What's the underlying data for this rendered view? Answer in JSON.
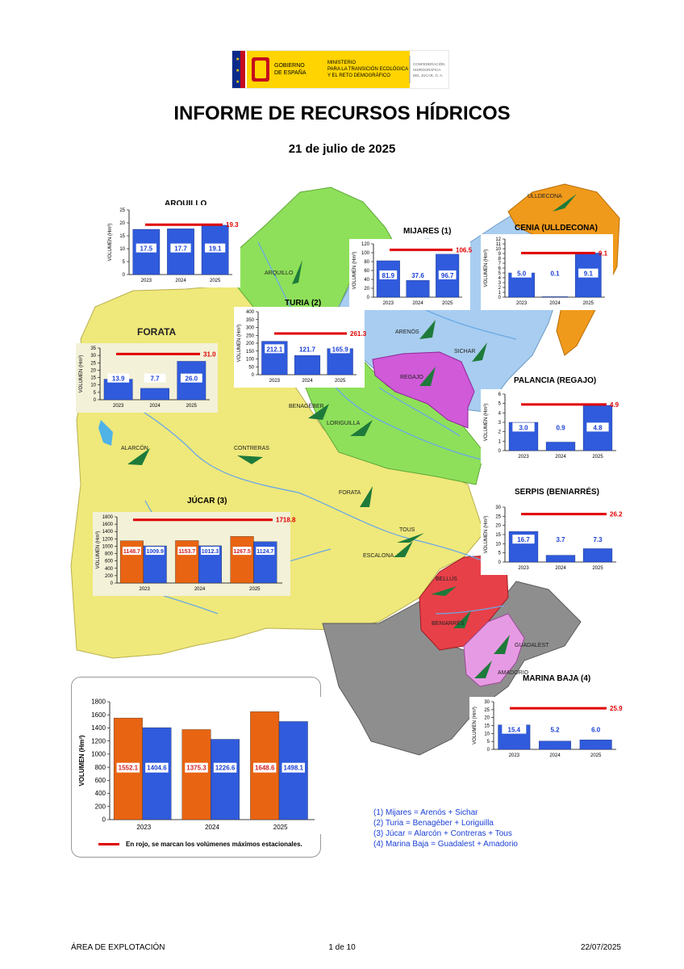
{
  "header": {
    "logo": {
      "gov_line1": "GOBIERNO",
      "gov_line2": "DE ESPAÑA",
      "ministry_line1": "MINISTERIO",
      "ministry_line2": "PARA LA TRANSICIÓN ECOLÓGICA",
      "ministry_line3": "Y EL RETO DEMOGRÁFICO",
      "chj_line1": "CONFEDERACIÓN",
      "chj_line2": "HIDROGRÁFICA",
      "chj_line3": "DEL JÚCAR, O. A."
    },
    "title": "INFORME DE RECURSOS HÍDRICOS",
    "date": "21 de julio de 2025"
  },
  "map": {
    "places": {
      "ulldecona": "ULLDECONA",
      "arquillo": "ARQUILLO",
      "arenos": "ARENÓS",
      "sichar": "SICHAR",
      "regajo": "REGAJO",
      "benageber": "BENAGÉBER",
      "loriguilla": "LORIGUILLA",
      "alarcon": "ALARCÓN",
      "contreras": "CONTRERAS",
      "forata": "FORATA",
      "tous": "TOUS",
      "escalona": "ESCALONA",
      "bellus": "BELLÚS",
      "beniarres": "BENIARRÉS",
      "guadalest": "GUADALEST",
      "amadorio": "AMADORIO"
    },
    "zone_label_forata": "FORATA",
    "colors": {
      "jucar": "#efe87a",
      "turia": "#8ee05a",
      "mijares": "#a8cdf0",
      "cenia": "#f09a1c",
      "regajo": "#d05ad8",
      "serpis": "#e84048",
      "marina": "#e79ae4",
      "segura": "#8e8e8e",
      "river": "#6aa9e6",
      "marker": "#1e7a3a"
    }
  },
  "chart_data": [
    {
      "id": "arquillo",
      "type": "bar",
      "title": "ARQUILLO",
      "ylabel": "VOLUMEN (Hm³)",
      "categories": [
        "2023",
        "2024",
        "2025"
      ],
      "values": [
        17.5,
        17.7,
        19.1
      ],
      "max_line": 19.3,
      "ylim": [
        0,
        25
      ],
      "ytick_step": 5
    },
    {
      "id": "mijares",
      "type": "bar",
      "title": "MIJARES (1)",
      "ylabel": "VOLUMEN (Hm³)",
      "categories": [
        "2023",
        "2024",
        "2025"
      ],
      "values": [
        81.9,
        37.6,
        96.7
      ],
      "max_line": 106.5,
      "ylim": [
        0,
        120
      ],
      "ytick_step": 20
    },
    {
      "id": "cenia",
      "type": "bar",
      "title": "CENIA (ULLDECONA)",
      "ylabel": "VOLUMEN (Hm³)",
      "categories": [
        "2023",
        "2024",
        "2025"
      ],
      "values": [
        5.0,
        0.1,
        9.1
      ],
      "max_line": 9.1,
      "ylim": [
        0,
        12
      ],
      "ytick_step": 1
    },
    {
      "id": "turia",
      "type": "bar",
      "title": "TURIA (2)",
      "ylabel": "VOLUMEN (Hm³)",
      "categories": [
        "2023",
        "2024",
        "2025"
      ],
      "values": [
        212.1,
        121.7,
        165.9
      ],
      "max_line": 261.3,
      "ylim": [
        0,
        400
      ],
      "ytick_step": 50
    },
    {
      "id": "forata",
      "type": "bar",
      "title": "",
      "ylabel": "VOLUMEN (Hm³)",
      "categories": [
        "2023",
        "2024",
        "2025"
      ],
      "values": [
        13.9,
        7.7,
        26.0
      ],
      "max_line": 31.0,
      "ylim": [
        0,
        35
      ],
      "ytick_step": 5
    },
    {
      "id": "palancia",
      "type": "bar",
      "title": "PALANCIA (REGAJO)",
      "ylabel": "VOLUMEN (Hm³)",
      "categories": [
        "2023",
        "2024",
        "2025"
      ],
      "values": [
        3.0,
        0.9,
        4.8
      ],
      "max_line": 4.9,
      "ylim": [
        0,
        6
      ],
      "ytick_step": 1
    },
    {
      "id": "serpis",
      "type": "bar",
      "title": "SERPIS (BENIARRÉS)",
      "ylabel": "VOLUMEN (Hm³)",
      "categories": [
        "2023",
        "2024",
        "2025"
      ],
      "values": [
        16.7,
        3.7,
        7.3
      ],
      "max_line": 26.2,
      "ylim": [
        0,
        30
      ],
      "ytick_step": 5
    },
    {
      "id": "marina",
      "type": "bar",
      "title": "MARINA BAJA (4)",
      "ylabel": "VOLUMEN (Hm³)",
      "categories": [
        "2023",
        "2024",
        "2025"
      ],
      "values": [
        15.4,
        5.2,
        6.0
      ],
      "max_line": 25.9,
      "ylim": [
        0,
        30
      ],
      "ytick_step": 5
    },
    {
      "id": "jucar",
      "type": "bar",
      "title": "JÚCAR (3)",
      "ylabel": "VOLUMEN (Hm³)",
      "categories": [
        "2023",
        "2024",
        "2025"
      ],
      "series": [
        {
          "values": [
            1148.7,
            1153.7,
            1267.5
          ],
          "color": "#e86412"
        },
        {
          "values": [
            1009.9,
            1012.3,
            1124.7
          ],
          "color": "#2f5bdc"
        }
      ],
      "max_line": 1718.8,
      "ylim": [
        0,
        1800
      ],
      "ytick_step": 200
    },
    {
      "id": "total",
      "type": "bar",
      "title": "",
      "ylabel": "VOLUMEN (Hm³)",
      "categories": [
        "2023",
        "2024",
        "2025"
      ],
      "series": [
        {
          "values": [
            1552.1,
            1375.3,
            1648.6
          ],
          "color": "#e86412"
        },
        {
          "values": [
            1404.6,
            1226.6,
            1498.1
          ],
          "color": "#2f5bdc"
        }
      ],
      "ylim": [
        0,
        1800
      ],
      "ytick_step": 200
    }
  ],
  "notes": {
    "footnotes": [
      "(1) Mijares = Arenós + Sichar",
      "(2) Turia = Benagéber + Loriguilla",
      "(3) Júcar = Alarcón + Contreras + Tous",
      "(4) Marina Baja = Guadalest + Amadorio"
    ],
    "red_line_note": "En rojo, se marcan los volúmenes máximos estacionales."
  },
  "footer": {
    "left": "ÁREA DE EXPLOTACIÓN",
    "page": "1 de 10",
    "date": "22/07/2025"
  }
}
